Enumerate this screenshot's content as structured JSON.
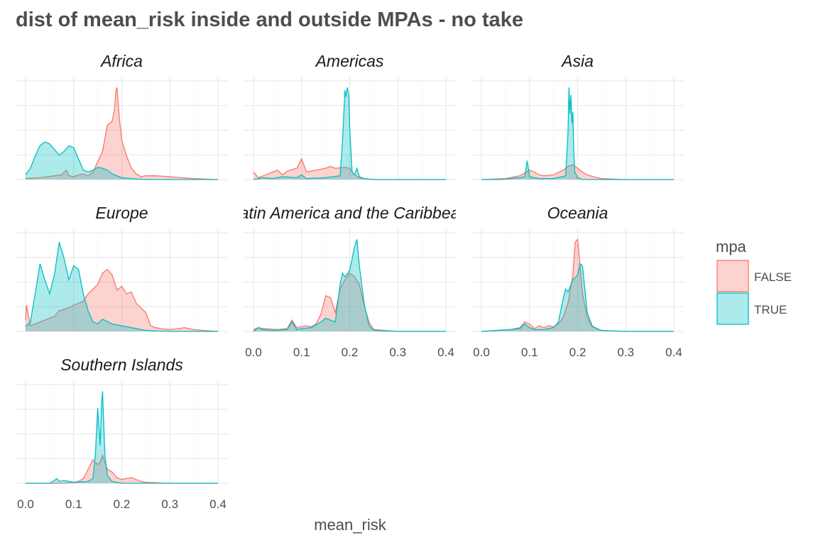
{
  "chart_data": {
    "type": "area",
    "title": "dist of mean_risk inside and outside MPAs - no take",
    "xlabel": "mean_risk",
    "ylabel": "",
    "xlim": [
      0.0,
      0.4
    ],
    "x_ticks": [
      "0.0",
      "0.1",
      "0.2",
      "0.3",
      "0.4"
    ],
    "legend": {
      "title": "mpa",
      "position": "right",
      "entries": [
        {
          "label": "FALSE",
          "line": "#F8766D",
          "fill": "rgba(248,118,109,0.32)"
        },
        {
          "label": "TRUE",
          "line": "#00BFC4",
          "fill": "rgba(0,191,196,0.32)"
        }
      ]
    },
    "grid": true,
    "panels": [
      {
        "name": "Africa",
        "ymax": 1.05,
        "series": [
          {
            "name": "FALSE",
            "x": [
              0,
              0.03,
              0.06,
              0.075,
              0.08,
              0.085,
              0.09,
              0.1,
              0.11,
              0.12,
              0.13,
              0.14,
              0.16,
              0.17,
              0.18,
              0.185,
              0.188,
              0.19,
              0.195,
              0.2,
              0.21,
              0.22,
              0.23,
              0.24,
              0.25,
              0.27,
              0.3,
              0.35,
              0.4
            ],
            "y": [
              0.01,
              0.02,
              0.04,
              0.05,
              0.08,
              0.1,
              0.04,
              0.03,
              0.05,
              0.06,
              0.04,
              0.08,
              0.3,
              0.58,
              0.62,
              0.75,
              0.95,
              0.98,
              0.65,
              0.42,
              0.25,
              0.12,
              0.06,
              0.03,
              0.04,
              0.04,
              0.03,
              0.01,
              0
            ]
          },
          {
            "name": "TRUE",
            "x": [
              0,
              0.01,
              0.02,
              0.03,
              0.04,
              0.05,
              0.07,
              0.08,
              0.09,
              0.1,
              0.11,
              0.12,
              0.13,
              0.14,
              0.15,
              0.16,
              0.17,
              0.18,
              0.2,
              0.22,
              0.25,
              0.3,
              0.4
            ],
            "y": [
              0.05,
              0.12,
              0.25,
              0.36,
              0.4,
              0.38,
              0.26,
              0.3,
              0.36,
              0.34,
              0.22,
              0.1,
              0.08,
              0.1,
              0.13,
              0.12,
              0.1,
              0.06,
              0.02,
              0.01,
              0,
              0,
              0
            ]
          }
        ]
      },
      {
        "name": "Americas",
        "ymax": 1.05,
        "series": [
          {
            "name": "FALSE",
            "x": [
              0,
              0.01,
              0.02,
              0.03,
              0.05,
              0.06,
              0.07,
              0.09,
              0.1,
              0.11,
              0.13,
              0.15,
              0.16,
              0.17,
              0.19,
              0.2,
              0.21,
              0.22,
              0.23,
              0.25,
              0.3,
              0.4
            ],
            "y": [
              0.08,
              0.02,
              0.04,
              0.06,
              0.1,
              0.05,
              0.09,
              0.12,
              0.22,
              0.08,
              0.1,
              0.12,
              0.14,
              0.12,
              0.13,
              0.12,
              0.05,
              0.02,
              0.01,
              0,
              0,
              0
            ]
          },
          {
            "name": "TRUE",
            "x": [
              0,
              0.02,
              0.04,
              0.06,
              0.09,
              0.1,
              0.11,
              0.15,
              0.18,
              0.185,
              0.19,
              0.192,
              0.195,
              0.198,
              0.2,
              0.205,
              0.21,
              0.215,
              0.22,
              0.23,
              0.25,
              0.4
            ],
            "y": [
              0,
              0.02,
              0.01,
              0.03,
              0.02,
              0.05,
              0.01,
              0.02,
              0.04,
              0.4,
              0.95,
              0.88,
              0.98,
              0.9,
              0.55,
              0.08,
              0.05,
              0.12,
              0.03,
              0.01,
              0,
              0
            ]
          }
        ]
      },
      {
        "name": "Asia",
        "ymax": 1.05,
        "series": [
          {
            "name": "FALSE",
            "x": [
              0,
              0.05,
              0.08,
              0.1,
              0.11,
              0.12,
              0.13,
              0.15,
              0.17,
              0.18,
              0.19,
              0.2,
              0.21,
              0.22,
              0.24,
              0.25,
              0.3,
              0.4
            ],
            "y": [
              0,
              0.01,
              0.04,
              0.1,
              0.08,
              0.05,
              0.04,
              0.05,
              0.1,
              0.14,
              0.16,
              0.12,
              0.08,
              0.05,
              0.02,
              0.01,
              0,
              0
            ]
          },
          {
            "name": "TRUE",
            "x": [
              0,
              0.04,
              0.08,
              0.09,
              0.095,
              0.1,
              0.12,
              0.15,
              0.175,
              0.18,
              0.182,
              0.184,
              0.186,
              0.188,
              0.19,
              0.192,
              0.194,
              0.2,
              0.21,
              0.25,
              0.4
            ],
            "y": [
              0,
              0,
              0.02,
              0.03,
              0.2,
              0.03,
              0.01,
              0.01,
              0.04,
              0.5,
              0.98,
              0.7,
              0.9,
              0.6,
              0.72,
              0.3,
              0.08,
              0.02,
              0,
              0,
              0
            ]
          }
        ]
      },
      {
        "name": "Europe",
        "ymax": 1.05,
        "series": [
          {
            "name": "FALSE",
            "x": [
              0,
              0.002,
              0.01,
              0.02,
              0.03,
              0.04,
              0.06,
              0.07,
              0.09,
              0.1,
              0.12,
              0.13,
              0.15,
              0.16,
              0.17,
              0.18,
              0.19,
              0.2,
              0.21,
              0.22,
              0.23,
              0.25,
              0.26,
              0.27,
              0.28,
              0.3,
              0.32,
              0.33,
              0.35,
              0.37,
              0.4
            ],
            "y": [
              0.12,
              0.28,
              0.06,
              0.08,
              0.1,
              0.12,
              0.16,
              0.22,
              0.25,
              0.28,
              0.32,
              0.4,
              0.5,
              0.62,
              0.66,
              0.6,
              0.44,
              0.48,
              0.4,
              0.42,
              0.3,
              0.2,
              0.06,
              0.04,
              0.03,
              0.02,
              0.03,
              0.04,
              0.02,
              0.01,
              0
            ]
          },
          {
            "name": "TRUE",
            "x": [
              0,
              0.01,
              0.02,
              0.03,
              0.04,
              0.05,
              0.06,
              0.07,
              0.08,
              0.09,
              0.1,
              0.11,
              0.12,
              0.13,
              0.14,
              0.15,
              0.16,
              0.18,
              0.2,
              0.22,
              0.25,
              0.3,
              0.4
            ],
            "y": [
              0.05,
              0.1,
              0.4,
              0.72,
              0.55,
              0.4,
              0.6,
              0.95,
              0.78,
              0.55,
              0.7,
              0.66,
              0.4,
              0.22,
              0.1,
              0.08,
              0.13,
              0.08,
              0.06,
              0.04,
              0.01,
              0,
              0
            ]
          }
        ]
      },
      {
        "name": "Latin America and the Caribbean",
        "ymax": 1.05,
        "series": [
          {
            "name": "FALSE",
            "x": [
              0,
              0.01,
              0.02,
              0.05,
              0.07,
              0.08,
              0.09,
              0.1,
              0.11,
              0.12,
              0.13,
              0.14,
              0.15,
              0.16,
              0.17,
              0.18,
              0.19,
              0.2,
              0.21,
              0.22,
              0.23,
              0.24,
              0.25,
              0.3,
              0.4
            ],
            "y": [
              0.02,
              0.04,
              0.03,
              0.02,
              0.03,
              0.12,
              0.04,
              0.05,
              0.06,
              0.05,
              0.08,
              0.18,
              0.38,
              0.36,
              0.2,
              0.45,
              0.55,
              0.62,
              0.58,
              0.5,
              0.28,
              0.1,
              0.02,
              0,
              0
            ]
          },
          {
            "name": "TRUE",
            "x": [
              0,
              0.01,
              0.02,
              0.04,
              0.07,
              0.08,
              0.09,
              0.1,
              0.12,
              0.14,
              0.15,
              0.16,
              0.17,
              0.18,
              0.185,
              0.19,
              0.2,
              0.21,
              0.215,
              0.22,
              0.23,
              0.24,
              0.25,
              0.3,
              0.4
            ],
            "y": [
              0,
              0.04,
              0.02,
              0.01,
              0.02,
              0.1,
              0.02,
              0.03,
              0.04,
              0.1,
              0.14,
              0.12,
              0.1,
              0.5,
              0.62,
              0.58,
              0.65,
              0.9,
              0.98,
              0.7,
              0.3,
              0.06,
              0.01,
              0,
              0
            ]
          }
        ]
      },
      {
        "name": "Oceania",
        "ymax": 1.05,
        "series": [
          {
            "name": "FALSE",
            "x": [
              0,
              0.03,
              0.06,
              0.08,
              0.09,
              0.1,
              0.11,
              0.12,
              0.13,
              0.14,
              0.15,
              0.16,
              0.17,
              0.18,
              0.19,
              0.195,
              0.2,
              0.205,
              0.21,
              0.22,
              0.23,
              0.25,
              0.3,
              0.4
            ],
            "y": [
              0,
              0.01,
              0.02,
              0.04,
              0.1,
              0.08,
              0.03,
              0.06,
              0.04,
              0.06,
              0.05,
              0.08,
              0.15,
              0.3,
              0.6,
              0.95,
              0.98,
              0.7,
              0.4,
              0.15,
              0.05,
              0.01,
              0,
              0
            ]
          },
          {
            "name": "TRUE",
            "x": [
              0,
              0.03,
              0.06,
              0.08,
              0.09,
              0.1,
              0.11,
              0.13,
              0.15,
              0.16,
              0.17,
              0.175,
              0.18,
              0.19,
              0.2,
              0.205,
              0.21,
              0.22,
              0.23,
              0.24,
              0.25,
              0.3,
              0.4
            ],
            "y": [
              0,
              0.01,
              0.02,
              0.03,
              0.08,
              0.04,
              0.02,
              0.02,
              0.04,
              0.1,
              0.35,
              0.45,
              0.42,
              0.55,
              0.6,
              0.72,
              0.7,
              0.2,
              0.06,
              0.03,
              0.01,
              0,
              0
            ]
          }
        ]
      },
      {
        "name": "Southern Islands",
        "ymax": 1.05,
        "series": [
          {
            "name": "FALSE",
            "x": [
              0,
              0.08,
              0.1,
              0.11,
              0.12,
              0.13,
              0.14,
              0.15,
              0.155,
              0.16,
              0.165,
              0.17,
              0.18,
              0.19,
              0.2,
              0.21,
              0.22,
              0.23,
              0.24,
              0.25,
              0.3,
              0.4
            ],
            "y": [
              0,
              0,
              0.01,
              0.02,
              0.05,
              0.15,
              0.25,
              0.2,
              0.22,
              0.3,
              0.22,
              0.15,
              0.12,
              0.06,
              0.04,
              0.05,
              0.06,
              0.04,
              0.02,
              0.01,
              0,
              0
            ]
          },
          {
            "name": "TRUE",
            "x": [
              0,
              0.05,
              0.06,
              0.065,
              0.07,
              0.08,
              0.1,
              0.13,
              0.14,
              0.145,
              0.15,
              0.155,
              0.158,
              0.16,
              0.162,
              0.165,
              0.17,
              0.18,
              0.2,
              0.4
            ],
            "y": [
              0,
              0,
              0.03,
              0.05,
              0.02,
              0.03,
              0.01,
              0.02,
              0.05,
              0.3,
              0.8,
              0.4,
              0.85,
              0.98,
              0.7,
              0.3,
              0.08,
              0.02,
              0,
              0
            ]
          }
        ]
      }
    ]
  }
}
